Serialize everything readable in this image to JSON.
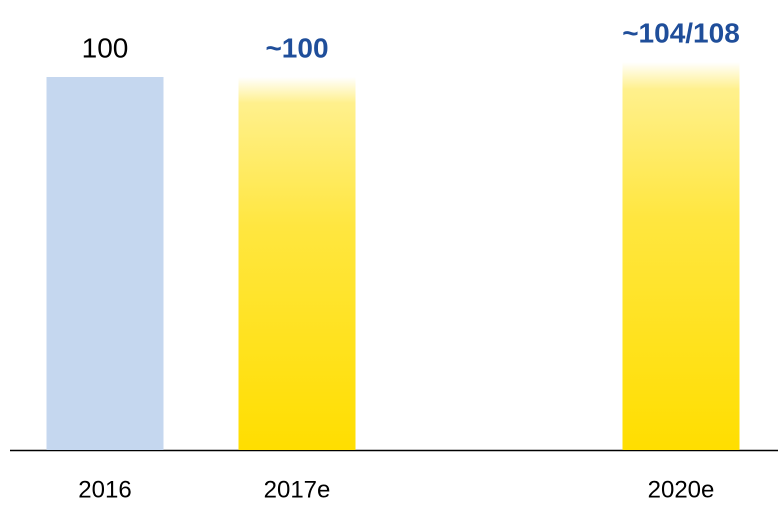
{
  "chart_data": {
    "type": "bar",
    "categories": [
      "2016",
      "2017e",
      null,
      "2020e"
    ],
    "values": [
      100,
      100,
      null,
      104
    ],
    "value_labels": [
      "100",
      "~100",
      null,
      "~104/108"
    ],
    "colors": [
      "#c5d7ef",
      "#ffde00",
      null,
      "#ffde00"
    ],
    "fade": [
      false,
      true,
      null,
      true
    ],
    "label_colors": [
      "#000000",
      "#1f4e9a",
      null,
      "#1f4e9a"
    ],
    "label_bold": [
      false,
      true,
      null,
      true
    ]
  }
}
